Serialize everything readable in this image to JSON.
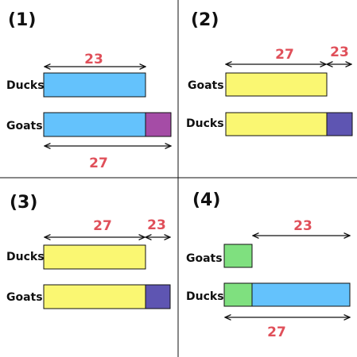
{
  "colors": {
    "number": "#e0505a",
    "blue": "#64c2fc",
    "purple": "#a54ca6",
    "yellow": "#faf772",
    "indigo": "#5e55b2",
    "green": "#7fe07f",
    "divider": "#111111"
  },
  "panels": [
    {
      "label": "(1)",
      "rows": [
        {
          "label": "Ducks",
          "segments": [
            "blue"
          ]
        },
        {
          "label": "Goats",
          "segments": [
            "blue",
            "purple"
          ]
        }
      ],
      "numbers": [
        "23",
        "27"
      ]
    },
    {
      "label": "(2)",
      "rows": [
        {
          "label": "Goats",
          "segments": [
            "yellow"
          ]
        },
        {
          "label": "Ducks",
          "segments": [
            "yellow",
            "indigo"
          ]
        }
      ],
      "numbers": [
        "27",
        "23"
      ]
    },
    {
      "label": "(3)",
      "rows": [
        {
          "label": "Ducks",
          "segments": [
            "yellow"
          ]
        },
        {
          "label": "Goats",
          "segments": [
            "yellow",
            "indigo"
          ]
        }
      ],
      "numbers": [
        "27",
        "23"
      ]
    },
    {
      "label": "(4)",
      "rows": [
        {
          "label": "Goats",
          "segments": [
            "green"
          ]
        },
        {
          "label": "Ducks",
          "segments": [
            "green",
            "blue"
          ]
        }
      ],
      "numbers": [
        "23",
        "27"
      ]
    }
  ]
}
